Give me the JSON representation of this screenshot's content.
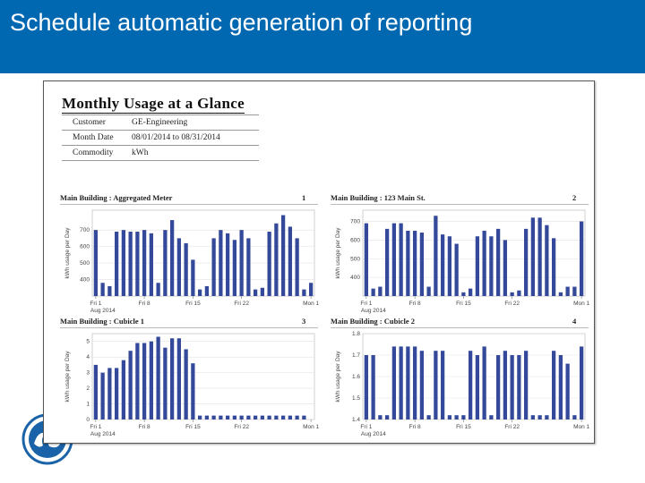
{
  "slide": {
    "title": "Schedule automatic generation of reporting",
    "banner_color": "#0067b1"
  },
  "logo": {
    "name": "ge-monogram-logo",
    "color": "#1a63a8"
  },
  "report": {
    "title": "Monthly Usage at a Glance",
    "meta": [
      {
        "label": "Customer",
        "value": "GE-Engineering"
      },
      {
        "label": "Month Date",
        "value": "08/01/2014 to 08/31/2014"
      },
      {
        "label": "Commodity",
        "value": "kWh"
      }
    ]
  },
  "chart_data": [
    {
      "type": "bar",
      "title": "Main Building : Aggregated Meter",
      "number": "1",
      "ylabel": "kWh usage per Day",
      "ylim": [
        300,
        820
      ],
      "yticks": [
        "400",
        "500",
        "600",
        "700"
      ],
      "xticks": [
        {
          "label": "Fri 1",
          "index": 0
        },
        {
          "label": "Fri 8",
          "index": 7
        },
        {
          "label": "Fri 15",
          "index": 14
        },
        {
          "label": "Fri 22",
          "index": 21
        },
        {
          "label": "Mon 1",
          "index": 31
        }
      ],
      "month_label": "Aug 2014",
      "bar_color": "#34499a",
      "values": [
        700,
        380,
        360,
        690,
        700,
        690,
        690,
        700,
        680,
        380,
        700,
        760,
        650,
        620,
        520,
        340,
        360,
        650,
        700,
        680,
        640,
        700,
        650,
        340,
        350,
        690,
        740,
        790,
        720,
        650,
        340,
        380
      ]
    },
    {
      "type": "bar",
      "title": "Main Building : 123 Main St.",
      "number": "2",
      "ylabel": "kWh usage per Day",
      "ylim": [
        300,
        760
      ],
      "yticks": [
        "400",
        "500",
        "600",
        "700"
      ],
      "xticks": [
        {
          "label": "Fri 1",
          "index": 0
        },
        {
          "label": "Fri 8",
          "index": 7
        },
        {
          "label": "Fri 15",
          "index": 14
        },
        {
          "label": "Fri 22",
          "index": 21
        },
        {
          "label": "Mon 1",
          "index": 31
        }
      ],
      "month_label": "Aug 2014",
      "bar_color": "#34499a",
      "values": [
        690,
        340,
        350,
        660,
        690,
        690,
        650,
        650,
        640,
        350,
        730,
        630,
        620,
        580,
        320,
        340,
        620,
        650,
        620,
        660,
        600,
        320,
        330,
        660,
        720,
        720,
        680,
        610,
        320,
        350,
        350,
        700
      ]
    },
    {
      "type": "bar",
      "title": "Main Building : Cubicle 1",
      "number": "3",
      "ylabel": "kWh usage per Day",
      "ylim": [
        0,
        5.5
      ],
      "yticks": [
        "0",
        "1",
        "2",
        "3",
        "4",
        "5"
      ],
      "xticks": [
        {
          "label": "Fri 1",
          "index": 0
        },
        {
          "label": "Fri 8",
          "index": 7
        },
        {
          "label": "Fri 15",
          "index": 14
        },
        {
          "label": "Fri 22",
          "index": 21
        },
        {
          "label": "Mon 1",
          "index": 31
        }
      ],
      "month_label": "Aug 2014",
      "bar_color": "#34499a",
      "values": [
        3.5,
        3.0,
        3.3,
        3.3,
        3.8,
        4.4,
        4.9,
        4.9,
        5.0,
        5.3,
        4.6,
        5.2,
        5.2,
        4.5,
        3.6,
        0.25,
        0.25,
        0.25,
        0.25,
        0.25,
        0.25,
        0.25,
        0.25,
        0.25,
        0.25,
        0.25,
        0.25,
        0.25,
        0.25,
        0.25,
        0.25
      ]
    },
    {
      "type": "bar",
      "title": "Main Building : Cubicle 2",
      "number": "4",
      "ylabel": "kWh usage per Day",
      "ylim": [
        1.4,
        1.8
      ],
      "yticks": [
        "1.4",
        "1.5",
        "1.6",
        "1.7",
        "1.8"
      ],
      "xticks": [
        {
          "label": "Fri 1",
          "index": 0
        },
        {
          "label": "Fri 8",
          "index": 7
        },
        {
          "label": "Fri 15",
          "index": 14
        },
        {
          "label": "Fri 22",
          "index": 21
        },
        {
          "label": "Mon 1",
          "index": 31
        }
      ],
      "month_label": "Aug 2014",
      "bar_color": "#34499a",
      "values": [
        1.7,
        1.7,
        1.42,
        1.42,
        1.74,
        1.74,
        1.74,
        1.74,
        1.72,
        1.42,
        1.72,
        1.72,
        1.42,
        1.42,
        1.42,
        1.72,
        1.7,
        1.74,
        1.42,
        1.7,
        1.72,
        1.7,
        1.7,
        1.72,
        1.42,
        1.42,
        1.42,
        1.72,
        1.7,
        1.66,
        1.42,
        1.74
      ]
    }
  ]
}
